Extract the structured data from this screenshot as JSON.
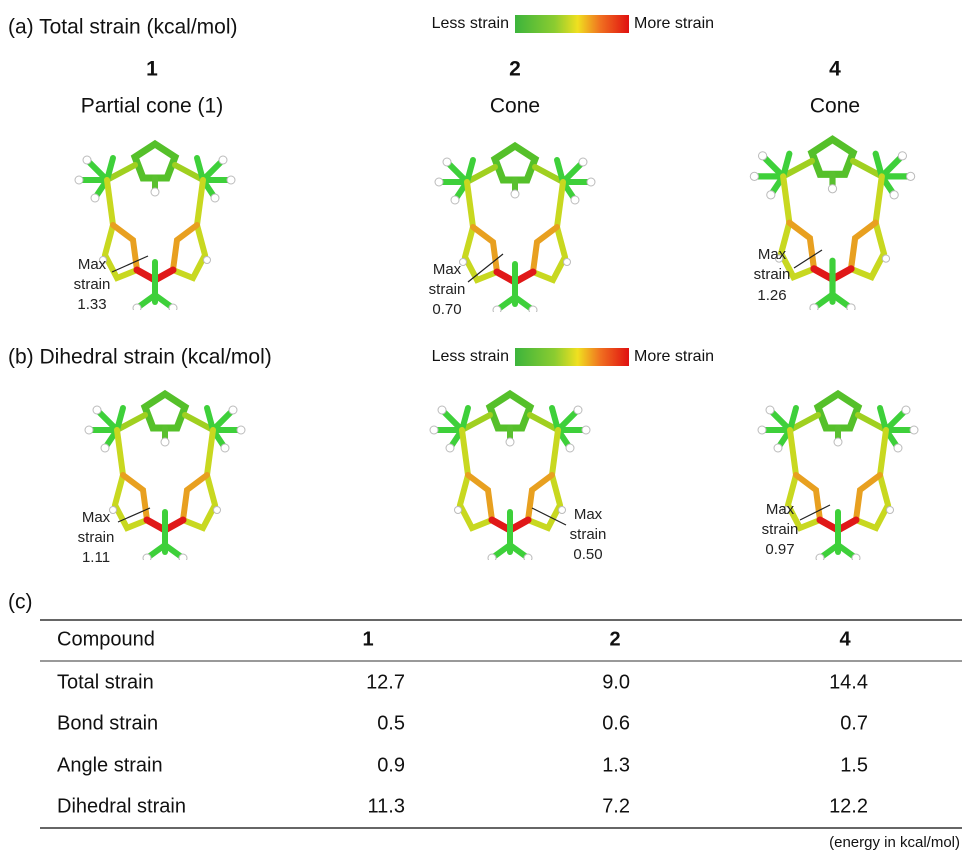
{
  "panel_a": {
    "label": "(a) Total strain (kcal/mol)",
    "legend": {
      "low": "Less strain",
      "high": "More strain"
    },
    "compounds": [
      {
        "id": "1",
        "conformation": "Partial cone (1)",
        "annotation": [
          "Max",
          "strain",
          "1.33"
        ]
      },
      {
        "id": "2",
        "conformation": "Cone",
        "annotation": [
          "Max",
          "strain",
          "0.70"
        ]
      },
      {
        "id": "4",
        "conformation": "Cone",
        "annotation": [
          "Max",
          "strain",
          "1.26"
        ]
      }
    ]
  },
  "panel_b": {
    "label": "(b) Dihedral strain (kcal/mol)",
    "legend": {
      "low": "Less strain",
      "high": "More strain"
    },
    "annotations": [
      [
        "Max",
        "strain",
        "1.11"
      ],
      [
        "Max",
        "strain",
        "0.50"
      ],
      [
        "Max",
        "strain",
        "0.97"
      ]
    ]
  },
  "panel_c": {
    "label": "(c)",
    "table": {
      "header": [
        "Compound",
        "1",
        "2",
        "4"
      ],
      "rows": [
        [
          "Total strain",
          "12.7",
          "9.0",
          "14.4"
        ],
        [
          "Bond strain",
          "0.5",
          "0.6",
          "0.7"
        ],
        [
          "Angle strain",
          "0.9",
          "1.3",
          "1.5"
        ],
        [
          "Dihedral strain",
          "11.3",
          "7.2",
          "12.2"
        ]
      ]
    },
    "note": "(energy in kcal/mol)"
  }
}
